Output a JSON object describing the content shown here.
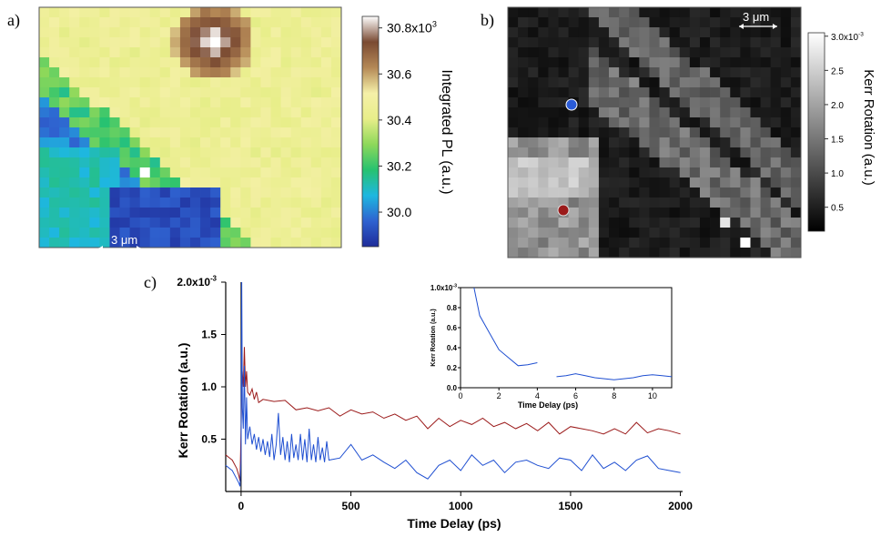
{
  "panels": {
    "a": "a)",
    "b": "b)",
    "c": "c)"
  },
  "chart_data": [
    {
      "type": "heatmap",
      "panel": "a",
      "colorbar_label": "Integrated PL (a.u.)",
      "colorbar_ticks": [
        "30.8x10",
        "30.6",
        "30.4",
        "30.2",
        "30.0"
      ],
      "colorbar_exponent": "3",
      "colorbar_values": [
        30800,
        30600,
        30400,
        30200,
        30000
      ],
      "colorbar_range": [
        29850,
        30850
      ],
      "scale_bar": "3 μm",
      "colormap": [
        "#1f2c99",
        "#2f62d0",
        "#1eb7e0",
        "#27c270",
        "#8ed85a",
        "#e8ee8a",
        "#f5f0a8",
        "#b48856",
        "#7a4a32",
        "#ffffff"
      ]
    },
    {
      "type": "heatmap",
      "panel": "b",
      "colorbar_label": "Kerr Rotation (a.u.)",
      "colorbar_ticks": [
        "3.0x10",
        "2.5",
        "2.0",
        "1.5",
        "1.0",
        "0.5"
      ],
      "colorbar_exponent": "-3",
      "colorbar_values": [
        3.0,
        2.5,
        2.0,
        1.5,
        1.0,
        0.5
      ],
      "colorbar_range": [
        0.15,
        3.05
      ],
      "scale_bar": "3 μm",
      "markers": [
        {
          "color": "#2a5bd7"
        },
        {
          "color": "#9b1a1a"
        }
      ]
    },
    {
      "type": "line",
      "panel": "c",
      "xlabel": "Time Delay (ps)",
      "ylabel": "Kerr Rotation (a.u.)",
      "xlim": [
        -70,
        2010
      ],
      "ylim": [
        0.0,
        2.0
      ],
      "xticks": [
        0,
        500,
        1000,
        1500,
        2000
      ],
      "yticks": [
        {
          "v": 2.0,
          "t": "2.0x10",
          "exp": "-3"
        },
        {
          "v": 1.5,
          "t": "1.5"
        },
        {
          "v": 1.0,
          "t": "1.0"
        },
        {
          "v": 0.5,
          "t": "0.5"
        }
      ],
      "series": [
        {
          "color": "#9b1a1a",
          "x": [
            -70,
            -40,
            -20,
            -10,
            -5,
            0,
            5,
            10,
            15,
            20,
            25,
            30,
            40,
            50,
            60,
            70,
            80,
            100,
            150,
            200,
            250,
            300,
            350,
            400,
            450,
            500,
            550,
            600,
            650,
            700,
            750,
            800,
            850,
            900,
            950,
            1000,
            1050,
            1100,
            1150,
            1200,
            1250,
            1300,
            1350,
            1400,
            1450,
            1500,
            1550,
            1600,
            1650,
            1700,
            1750,
            1800,
            1850,
            1900,
            1950,
            2000
          ],
          "y": [
            0.35,
            0.3,
            0.22,
            0.15,
            0.1,
            0.6,
            1.15,
            1.0,
            1.38,
            1.0,
            1.15,
            0.95,
            0.92,
            0.98,
            0.88,
            0.95,
            0.85,
            0.88,
            0.86,
            0.87,
            0.78,
            0.8,
            0.77,
            0.8,
            0.72,
            0.78,
            0.74,
            0.76,
            0.7,
            0.74,
            0.68,
            0.72,
            0.6,
            0.7,
            0.62,
            0.68,
            0.64,
            0.7,
            0.62,
            0.66,
            0.6,
            0.65,
            0.58,
            0.66,
            0.55,
            0.62,
            0.6,
            0.58,
            0.55,
            0.6,
            0.55,
            0.66,
            0.56,
            0.6,
            0.58,
            0.55
          ]
        },
        {
          "color": "#1f4fd1",
          "x": [
            -70,
            -40,
            -20,
            -10,
            -5,
            0,
            3,
            6,
            10,
            15,
            20,
            25,
            30,
            40,
            50,
            60,
            70,
            80,
            90,
            100,
            110,
            120,
            130,
            140,
            150,
            160,
            170,
            180,
            190,
            200,
            210,
            220,
            230,
            240,
            250,
            260,
            270,
            280,
            290,
            300,
            310,
            320,
            330,
            340,
            350,
            360,
            370,
            380,
            390,
            400,
            450,
            500,
            550,
            600,
            650,
            700,
            750,
            800,
            850,
            900,
            950,
            1000,
            1050,
            1100,
            1150,
            1200,
            1250,
            1300,
            1350,
            1400,
            1450,
            1500,
            1550,
            1600,
            1650,
            1700,
            1750,
            1800,
            1850,
            1900,
            1950,
            2000
          ],
          "y": [
            0.25,
            0.2,
            0.12,
            0.08,
            0.05,
            0.3,
            2.0,
            0.8,
            0.6,
            1.2,
            0.45,
            0.9,
            0.5,
            0.62,
            0.45,
            0.55,
            0.4,
            0.52,
            0.38,
            0.5,
            0.35,
            0.48,
            0.33,
            0.55,
            0.3,
            0.45,
            0.75,
            0.35,
            0.52,
            0.3,
            0.48,
            0.28,
            0.55,
            0.32,
            0.45,
            0.3,
            0.55,
            0.3,
            0.5,
            0.28,
            0.6,
            0.3,
            0.45,
            0.28,
            0.52,
            0.3,
            0.42,
            0.28,
            0.48,
            0.3,
            0.32,
            0.45,
            0.3,
            0.35,
            0.28,
            0.22,
            0.3,
            0.18,
            0.12,
            0.25,
            0.3,
            0.2,
            0.35,
            0.25,
            0.3,
            0.18,
            0.28,
            0.3,
            0.25,
            0.22,
            0.32,
            0.3,
            0.2,
            0.35,
            0.22,
            0.28,
            0.2,
            0.3,
            0.34,
            0.22,
            0.2,
            0.18
          ]
        }
      ],
      "inset": {
        "xlabel": "Time Delay (ps)",
        "ylabel": "Kerr Rotation (a.u.)",
        "xlim": [
          0,
          11
        ],
        "ylim": [
          0.0,
          1.0
        ],
        "xticks": [
          0,
          2,
          4,
          6,
          8,
          10
        ],
        "yticks": [
          {
            "v": 1.0,
            "t": "1.0x10",
            "exp": "-3"
          },
          {
            "v": 0.8,
            "t": "0.8"
          },
          {
            "v": 0.6,
            "t": "0.6"
          },
          {
            "v": 0.4,
            "t": "0.4"
          },
          {
            "v": 0.2,
            "t": "0.2"
          },
          {
            "v": 0.0,
            "t": "0.0"
          }
        ],
        "segments": [
          {
            "x": [
              0.7,
              1.0,
              1.5,
              2.0,
              2.5,
              3.0,
              3.5,
              4.0
            ],
            "y": [
              1.0,
              0.72,
              0.55,
              0.38,
              0.3,
              0.22,
              0.23,
              0.25
            ]
          },
          {
            "x": [
              5.0,
              5.5,
              6.0,
              6.5,
              7.0,
              7.5,
              8.0,
              8.5,
              9.0,
              9.5,
              10.0,
              10.5,
              11.0
            ],
            "y": [
              0.11,
              0.12,
              0.14,
              0.12,
              0.1,
              0.09,
              0.08,
              0.09,
              0.1,
              0.12,
              0.13,
              0.12,
              0.11
            ]
          }
        ]
      }
    }
  ]
}
